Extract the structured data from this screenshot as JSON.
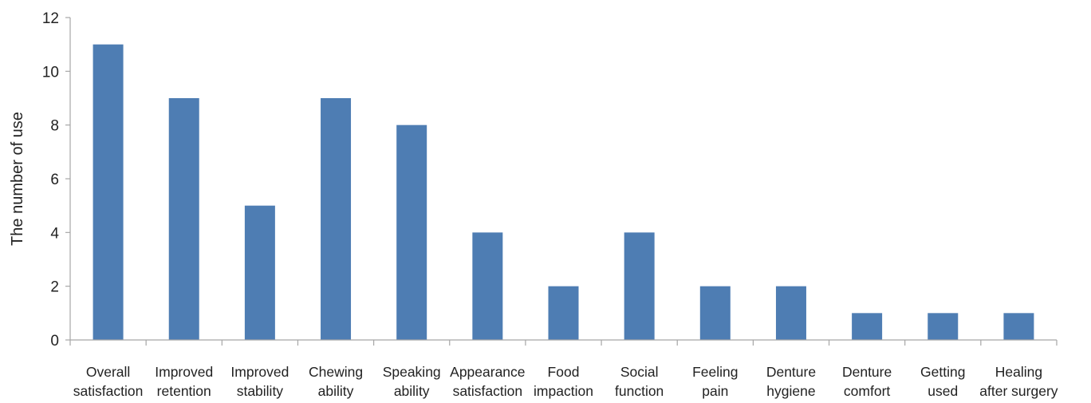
{
  "chart_data": {
    "type": "bar",
    "title": "",
    "xlabel": "",
    "ylabel": "The number of use",
    "ylim": [
      0,
      12
    ],
    "yticks": [
      0,
      2,
      4,
      6,
      8,
      10,
      12
    ],
    "grid": false,
    "bar_color": "#4e7db3",
    "categories": [
      [
        "Overall",
        "satisfaction"
      ],
      [
        "Improved",
        "retention"
      ],
      [
        "Improved",
        "stability"
      ],
      [
        "Chewing",
        "ability"
      ],
      [
        "Speaking",
        "ability"
      ],
      [
        "Appearance",
        "satisfaction"
      ],
      [
        "Food",
        "impaction"
      ],
      [
        "Social",
        "function"
      ],
      [
        "Feeling",
        "pain"
      ],
      [
        "Denture",
        "hygiene"
      ],
      [
        "Denture",
        "comfort"
      ],
      [
        "Getting",
        "used"
      ],
      [
        "Healing",
        "after surgery"
      ]
    ],
    "values": [
      11,
      9,
      5,
      9,
      8,
      4,
      2,
      4,
      2,
      2,
      1,
      1,
      1
    ]
  }
}
